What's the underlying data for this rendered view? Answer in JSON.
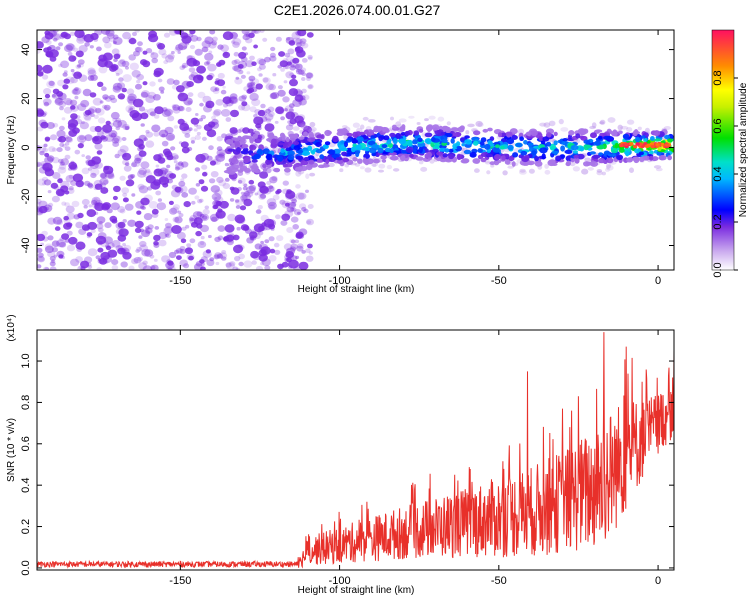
{
  "title": "C2E1.2026.074.00.01.G27",
  "colors": {
    "signal": "#e8302a",
    "dots": "#7a2be0",
    "axis": "#000000"
  },
  "chart_data": [
    {
      "type": "heatmap",
      "xlabel": "Height of straight line (km)",
      "ylabel": "Frequency (Hz)",
      "xlim": [
        -195,
        5
      ],
      "ylim": [
        -50,
        48
      ],
      "xticks": [
        -150,
        -100,
        -50,
        0
      ],
      "xtick_labels": [
        "-150",
        "-100",
        "-50",
        "0"
      ],
      "yticks": [
        -40,
        -20,
        0,
        20,
        40
      ],
      "ytick_labels": [
        "-40",
        "-20",
        "0",
        "20",
        "40"
      ],
      "colorbar": {
        "label": "Normalized spectral amplitude",
        "range": [
          0,
          1
        ],
        "ticks": [
          0.0,
          0.2,
          0.4,
          0.6,
          0.8
        ],
        "tick_labels": [
          "0.0",
          "0.2",
          "0.4",
          "0.6",
          "0.8"
        ]
      },
      "noise_region_x": [
        -195,
        -115
      ],
      "signal_band": {
        "x": [
          -135,
          -115,
          -100,
          -80,
          -60,
          -40,
          -20,
          0,
          5
        ],
        "center_freq": [
          -3,
          -2,
          0,
          2,
          1,
          0,
          0,
          1,
          1
        ],
        "peak_amplitude": [
          0.25,
          0.45,
          0.5,
          0.55,
          0.5,
          0.5,
          0.55,
          0.9,
          0.95
        ]
      }
    },
    {
      "type": "line",
      "xlabel": "Height of straight line (km)",
      "ylabel": "SNR (10 * v/v)",
      "scale_note": "(x10⁴)",
      "xlim": [
        -195,
        5
      ],
      "ylim": [
        -0.01,
        1.15
      ],
      "xticks": [
        -150,
        -100,
        -50,
        0
      ],
      "xtick_labels": [
        "-150",
        "-100",
        "-50",
        "0"
      ],
      "yticks": [
        0.0,
        0.2,
        0.4,
        0.6,
        0.8,
        1.0
      ],
      "ytick_labels": [
        "0.0",
        "0.2",
        "0.4",
        "0.6",
        "0.8",
        "1.0"
      ],
      "series": [
        {
          "envelope_x": [
            -195,
            -113,
            -110,
            -100,
            -80,
            -60,
            -40,
            -30,
            -20,
            -15,
            -10,
            -5,
            0,
            5
          ],
          "envelope_mean": [
            0.02,
            0.02,
            0.08,
            0.11,
            0.17,
            0.22,
            0.27,
            0.32,
            0.38,
            0.45,
            0.55,
            0.62,
            0.7,
            0.78
          ],
          "envelope_amp": [
            0.02,
            0.02,
            0.07,
            0.09,
            0.13,
            0.17,
            0.22,
            0.25,
            0.3,
            0.32,
            0.28,
            0.2,
            0.15,
            0.15
          ],
          "spikes_x": [
            -41,
            -17,
            -10,
            -30,
            -25,
            -5,
            5
          ],
          "spikes_y": [
            0.95,
            1.14,
            1.07,
            0.77,
            0.83,
            0.9,
            1.05
          ]
        }
      ]
    }
  ]
}
